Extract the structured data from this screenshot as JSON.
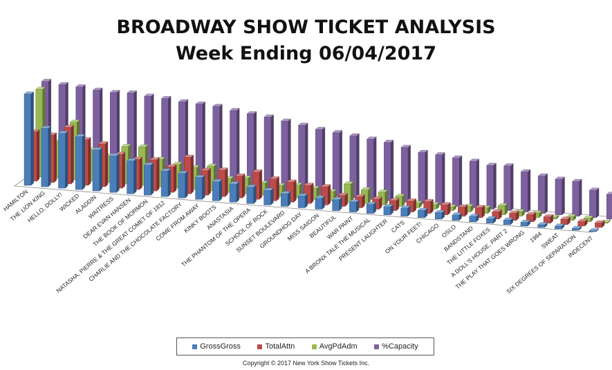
{
  "chart_data": {
    "type": "bar",
    "title": "BROADWAY SHOW TICKET ANALYSIS",
    "subtitle": "Week Ending 06/04/2017",
    "legend_position": "bottom",
    "grid": false,
    "categories": [
      "HAMILTON",
      "THE LION KING",
      "HELLO, DOLLY!",
      "WICKED",
      "ALADDIN",
      "WAITRESS",
      "DEAR EVAN HANSEN",
      "THE BOOK OF MORMON",
      "NATASHA, PIERRE & THE GREAT COMET OF 1812",
      "CHARLIE AND THE CHOCOLATE FACTORY",
      "COME FROM AWAY",
      "KINKY BOOTS",
      "ANASTASIA",
      "THE PHANTOM OF THE OPERA",
      "SCHOOL OF ROCK",
      "SUNSET BOULEVARD",
      "GROUNDHOG DAY",
      "MISS SAIGON",
      "BEAUTIFUL",
      "WAR PAINT",
      "A BRONX TALE THE MUSICAL",
      "PRESENT LAUGHTER",
      "CATS",
      "ON YOUR FEET!",
      "CHICAGO",
      "OSLO",
      "BANDSTAND",
      "THE LITTLE FOXES",
      "A DOLL'S HOUSE, PART 2",
      "THE PLAY THAT GOES WRONG",
      "1984",
      "SWEAT",
      "SIX DEGREES OF SEPARATION",
      "INDECENT"
    ],
    "series": [
      {
        "name": "GrossGross",
        "color": "#4a7ebb",
        "values": [
          100,
          64,
          60,
          58,
          45,
          40,
          36,
          33,
          28,
          27,
          24,
          21,
          20,
          18,
          16,
          14,
          13,
          12,
          12,
          11,
          10,
          9,
          9,
          8,
          7,
          6,
          6,
          5,
          5,
          4,
          3,
          3,
          2,
          1
        ]
      },
      {
        "name": "TotalAttn",
        "color": "#be4b48",
        "values": [
          54,
          52,
          62,
          50,
          47,
          37,
          33,
          34,
          28,
          40,
          27,
          29,
          24,
          30,
          24,
          22,
          20,
          20,
          12,
          12,
          11,
          11,
          12,
          13,
          11,
          10,
          11,
          8,
          8,
          8,
          7,
          6,
          5,
          5
        ]
      },
      {
        "name": "AvgPdAdm",
        "color": "#98b954",
        "values": [
          96,
          40,
          63,
          34,
          29,
          41,
          42,
          30,
          26,
          24,
          27,
          15,
          17,
          13,
          12,
          14,
          12,
          10,
          20,
          15,
          14,
          11,
          5,
          5,
          4,
          6,
          6,
          10,
          5,
          5,
          2,
          4,
          4,
          1
        ]
      },
      {
        "name": "%Capacity",
        "color": "#7d60a0",
        "values": [
          100,
          98,
          97,
          95,
          94,
          95,
          93,
          92,
          90,
          89,
          88,
          85,
          83,
          81,
          78,
          75,
          72,
          70,
          68,
          66,
          64,
          60,
          56,
          55,
          53,
          51,
          48,
          49,
          44,
          41,
          39,
          38,
          30,
          27
        ]
      }
    ]
  },
  "copyright": "Copyright © 2017 New York Show Tickets Inc."
}
